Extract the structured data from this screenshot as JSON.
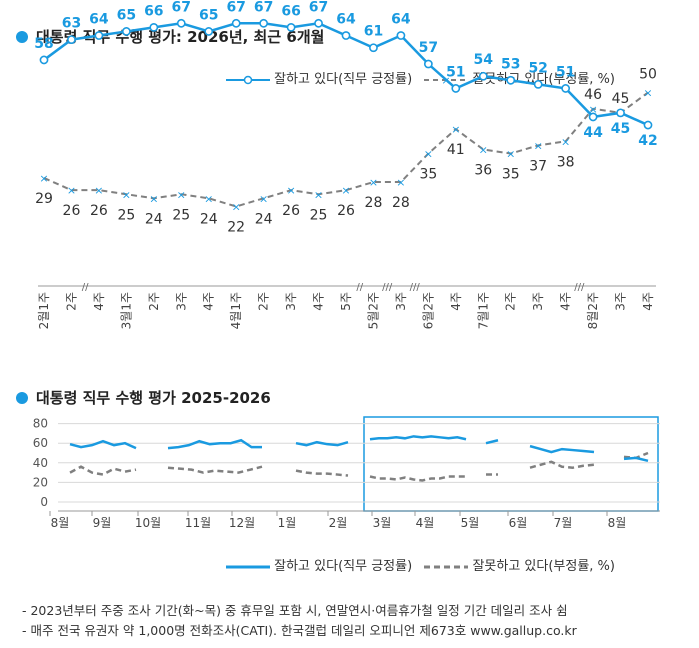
{
  "chart1_title": "대통령 직무 수행 평가: 2026년, 최근 6개월",
  "chart2_title": "대통령 직무 수행 평가 2025-2026",
  "legend": {
    "positive": "잘하고 있다(직무 긍정률)",
    "negative": "잘못하고 있다(부정률, %)"
  },
  "colors": {
    "positive": "#1a9ae0",
    "negative": "#808080",
    "accent": "#1a9ae0"
  },
  "icons": {
    "positive_marker": "circle-marker-icon",
    "negative_marker": "x-marker-icon"
  },
  "footnotes": [
    "- 2023년부터 주중 조사 기간(화~목) 중 휴무일 포함 시, 연말연시·여름휴가철 일정 기간 데일리 조사 쉼",
    "- 매주 전국 유권자 약 1,000명 전화조사(CATI). 한국갤럽 데일리 오피니언 제673호 www.gallup.co.kr"
  ],
  "chart_data": [
    {
      "type": "line",
      "title": "대통령 직무 수행 평가: 2026년, 최근 6개월",
      "categories": [
        "2월1주",
        "2주",
        "4주",
        "3월1주",
        "2주",
        "3주",
        "4주",
        "4월1주",
        "2주",
        "3주",
        "4주",
        "5주",
        "5월2주",
        "3주",
        "6월2주",
        "4주",
        "7월1주",
        "2주",
        "3주",
        "4주",
        "8월2주",
        "3주",
        "4주"
      ],
      "month_labels": [
        "2월",
        "3월",
        "4월",
        "5월",
        "6월",
        "7월",
        "8월"
      ],
      "series": [
        {
          "name": "잘하고 있다(직무 긍정률)",
          "values": [
            58,
            63,
            64,
            65,
            66,
            67,
            65,
            67,
            67,
            66,
            67,
            64,
            61,
            64,
            57,
            51,
            54,
            53,
            52,
            51,
            44,
            45,
            42
          ]
        },
        {
          "name": "잘못하고 있다(부정률, %)",
          "values": [
            29,
            26,
            26,
            25,
            24,
            25,
            24,
            22,
            24,
            26,
            25,
            26,
            28,
            28,
            35,
            41,
            36,
            35,
            37,
            38,
            46,
            45,
            50
          ]
        }
      ],
      "axis_break_marks": [
        "//",
        "//",
        "///",
        "///",
        "///"
      ]
    },
    {
      "type": "line",
      "title": "대통령 직무 수행 평가 2025-2026",
      "yticks": [
        0,
        20,
        40,
        60,
        80
      ],
      "ylim": [
        0,
        80
      ],
      "xtick_labels": [
        "8월",
        "9월",
        "10월",
        "11월",
        "12월",
        "1월",
        "2월",
        "3월",
        "4월",
        "5월",
        "6월",
        "7월",
        "8월"
      ],
      "highlight": "3월-8월",
      "series": [
        {
          "name": "잘하고 있다(직무 긍정률)",
          "segments": [
            [
              59,
              56,
              58,
              62,
              58,
              60,
              55
            ],
            [
              55,
              56,
              58,
              62,
              59,
              60,
              60,
              63,
              56,
              56
            ],
            [
              60,
              58,
              61,
              59,
              58,
              61
            ],
            [
              64,
              65,
              65,
              66,
              65,
              67,
              66,
              67,
              66,
              65,
              66,
              64
            ],
            [
              60,
              63
            ],
            [
              57,
              54,
              51,
              54,
              53,
              52,
              51
            ],
            [
              44,
              45,
              42
            ]
          ]
        },
        {
          "name": "잘못하고 있다(부정률, %)",
          "segments": [
            [
              30,
              36,
              30,
              28,
              34,
              31,
              33
            ],
            [
              35,
              34,
              33,
              30,
              32,
              31,
              30,
              33,
              36
            ],
            [
              32,
              30,
              29,
              29,
              28,
              27
            ],
            [
              26,
              24,
              24,
              23,
              25,
              23,
              22,
              24,
              24,
              26,
              26,
              26
            ],
            [
              28,
              28
            ],
            [
              35,
              38,
              41,
              36,
              35,
              37,
              38
            ],
            [
              46,
              45,
              50
            ]
          ]
        }
      ]
    }
  ]
}
